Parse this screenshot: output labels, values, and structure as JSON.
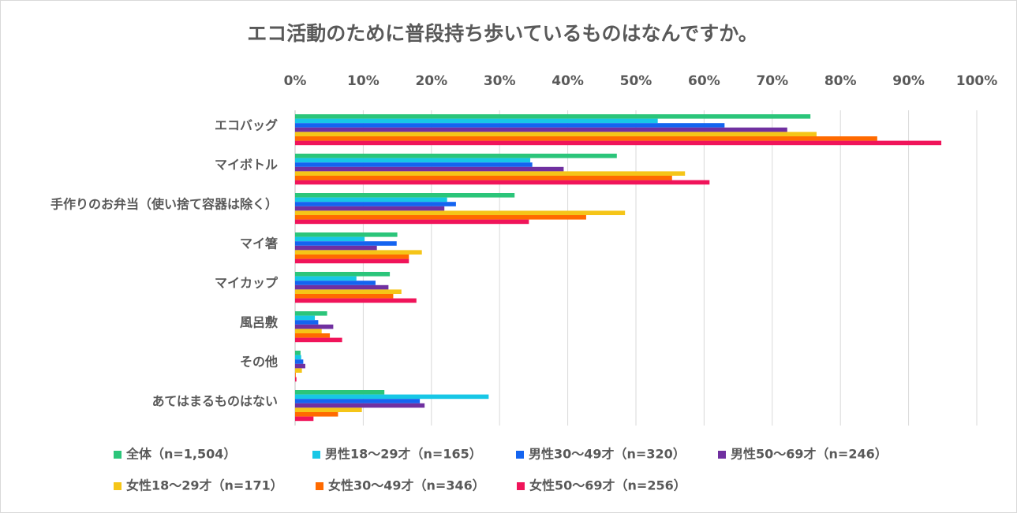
{
  "chart_data": {
    "type": "hbar",
    "title": "エコ活動のために普段持ち歩いているものはなんですか。",
    "categories": [
      "エコバッグ",
      "マイボトル",
      "手作りのお弁当（使い捨て容器は除く）",
      "マイ箸",
      "マイカップ",
      "風呂敷",
      "その他",
      "あてはまるものはない"
    ],
    "series": [
      {
        "name": "全体（n=1,504）",
        "color": "#2bc57a",
        "values": [
          75.6,
          47.2,
          32.2,
          15.0,
          13.9,
          4.7,
          0.8,
          13.1
        ]
      },
      {
        "name": "男性18～29才（n=165）",
        "color": "#17c7e6",
        "values": [
          53.2,
          34.5,
          22.3,
          10.2,
          9.0,
          2.9,
          0.9,
          28.4
        ]
      },
      {
        "name": "男性30～49才（n=320）",
        "color": "#1464f0",
        "values": [
          63.0,
          34.8,
          23.6,
          14.9,
          11.8,
          3.4,
          1.2,
          18.3
        ]
      },
      {
        "name": "男性50～69才（n=246）",
        "color": "#7030a0",
        "values": [
          72.2,
          39.4,
          21.9,
          12.0,
          13.7,
          5.6,
          1.5,
          19.0
        ]
      },
      {
        "name": "女性18～29才（n=171）",
        "color": "#f5c518",
        "values": [
          76.5,
          57.2,
          48.4,
          18.6,
          15.6,
          3.9,
          1.0,
          9.8
        ]
      },
      {
        "name": "女性30～49才（n=346）",
        "color": "#ff6a00",
        "values": [
          85.4,
          55.3,
          42.7,
          16.7,
          14.4,
          5.1,
          0.1,
          6.3
        ]
      },
      {
        "name": "女性50～69才（n=256）",
        "color": "#f0145a",
        "values": [
          94.8,
          60.8,
          34.3,
          16.7,
          17.8,
          6.9,
          0.2,
          2.7
        ]
      }
    ],
    "xlim": [
      0,
      100
    ],
    "xticks": [
      {
        "value": 0,
        "label": "0%"
      },
      {
        "value": 10,
        "label": "10%"
      },
      {
        "value": 20,
        "label": "20%"
      },
      {
        "value": 30,
        "label": "30%"
      },
      {
        "value": 40,
        "label": "40%"
      },
      {
        "value": 50,
        "label": "50%"
      },
      {
        "value": 60,
        "label": "60%"
      },
      {
        "value": 70,
        "label": "70%"
      },
      {
        "value": 80,
        "label": "80%"
      },
      {
        "value": 90,
        "label": "90%"
      },
      {
        "value": 100,
        "label": "100%"
      }
    ],
    "grid": true,
    "legend": "bottom"
  }
}
